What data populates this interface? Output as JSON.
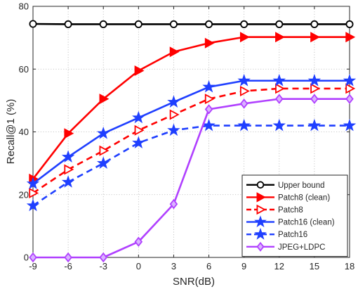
{
  "chart_data": {
    "type": "line",
    "title": "",
    "xlabel": "SNR(dB)",
    "ylabel": "Recall@1 (%)",
    "x": [
      -9,
      -6,
      -3,
      0,
      3,
      6,
      9,
      12,
      15,
      18
    ],
    "xlim": [
      -9,
      18
    ],
    "ylim": [
      0,
      80
    ],
    "xticks": [
      "-9",
      "-6",
      "-3",
      "0",
      "3",
      "6",
      "9",
      "12",
      "15",
      "18"
    ],
    "yticks": [
      "0",
      "20",
      "40",
      "60",
      "80"
    ],
    "grid": "dotted",
    "legend_placement": "bottom-right",
    "series": [
      {
        "name": "Upper bound",
        "color": "#000000",
        "dash": "solid",
        "marker": "circle-open",
        "values": [
          74.4,
          74.3,
          74.3,
          74.3,
          74.3,
          74.3,
          74.3,
          74.3,
          74.3,
          74.3
        ]
      },
      {
        "name": "Patch8 (clean)",
        "color": "#ff0000",
        "dash": "solid",
        "marker": "triangle-right-filled",
        "values": [
          25.0,
          39.5,
          50.5,
          59.5,
          65.5,
          68.3,
          70.2,
          70.2,
          70.2,
          70.2
        ]
      },
      {
        "name": "Patch8",
        "color": "#ff0000",
        "dash": "dashed",
        "marker": "triangle-right-open",
        "values": [
          20.5,
          28.0,
          34.0,
          40.5,
          45.5,
          50.5,
          53.0,
          53.8,
          53.8,
          53.8
        ]
      },
      {
        "name": "Patch16 (clean)",
        "color": "#1f3fff",
        "dash": "solid",
        "marker": "star-filled",
        "values": [
          23.5,
          32.0,
          39.5,
          44.5,
          49.5,
          54.3,
          56.3,
          56.3,
          56.3,
          56.3
        ]
      },
      {
        "name": "Patch16",
        "color": "#1f3fff",
        "dash": "dashed",
        "marker": "star-filled",
        "values": [
          16.5,
          24.0,
          30.0,
          36.5,
          40.5,
          42.0,
          42.0,
          42.0,
          42.0,
          42.0
        ]
      },
      {
        "name": "JPEG+LDPC",
        "color": "#b040ff",
        "dash": "solid",
        "marker": "diamond-open",
        "values": [
          0.0,
          0.0,
          0.0,
          5.0,
          17.0,
          47.2,
          49.0,
          50.5,
          50.5,
          50.5
        ]
      }
    ]
  }
}
